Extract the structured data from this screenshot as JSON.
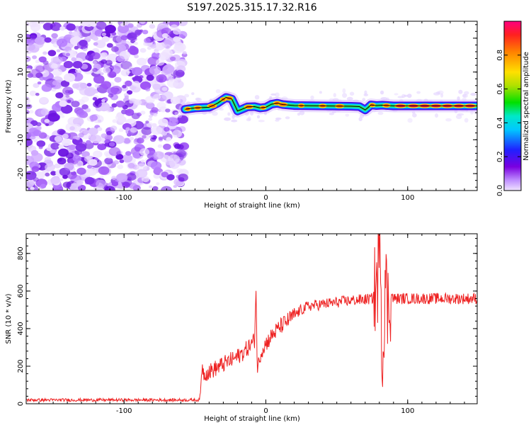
{
  "title": "S197.2025.315.17.32.R16",
  "chart_data": [
    {
      "type": "heatmap",
      "xlabel": "Height of straight line (km)",
      "ylabel": "Frequency (Hz)",
      "xlim": [
        -169,
        149
      ],
      "ylim": [
        -25,
        25
      ],
      "xticks": [
        -100,
        0,
        100
      ],
      "xtick_labels": [
        "-100",
        "0",
        "100"
      ],
      "yticks": [
        -20,
        -10,
        0,
        10,
        20
      ],
      "ytick_labels": [
        "-20",
        "-10",
        "0",
        "10",
        "20"
      ],
      "noise_region_x": [
        -169,
        -57
      ],
      "ridge_line": {
        "x": [
          -57,
          -50,
          -40,
          -34,
          -28,
          -24,
          -20,
          -17,
          -13,
          -8,
          -4,
          0,
          4,
          8,
          12,
          20,
          40,
          60,
          66,
          70,
          72,
          74,
          78,
          82,
          90,
          100,
          120,
          149
        ],
        "y": [
          -1,
          -0.6,
          -0.4,
          0.8,
          2.5,
          2,
          -1.5,
          -1,
          -0.3,
          -0.2,
          -0.6,
          -0.4,
          0.5,
          0.8,
          0.4,
          0.1,
          0,
          -0.1,
          -0.2,
          -1.2,
          -0.5,
          0.3,
          0.1,
          0.2,
          0,
          0,
          0,
          0
        ]
      },
      "colorbar": {
        "label": "Normalized spectral amplitude",
        "range": [
          0,
          1
        ],
        "ticks": [
          "0.0",
          "0.2",
          "0.4",
          "0.6",
          "0.8"
        ]
      }
    },
    {
      "type": "line",
      "xlabel": "Height of straight line (km)",
      "ylabel": "SNR (10 * v/v)",
      "xlim": [
        -169,
        149
      ],
      "ylim": [
        0,
        905
      ],
      "xticks": [
        -100,
        0,
        100
      ],
      "xtick_labels": [
        "-100",
        "0",
        "100"
      ],
      "yticks": [
        0,
        200,
        400,
        600,
        800
      ],
      "ytick_labels": [
        "0",
        "200",
        "400",
        "600",
        "800"
      ],
      "series": [
        {
          "name": "SNR",
          "color": "#ee2222",
          "x": [
            -169,
            -150,
            -120,
            -90,
            -60,
            -47,
            -46,
            -45,
            -44,
            -40,
            -35,
            -30,
            -25,
            -20,
            -15,
            -10,
            -8,
            -7,
            -6,
            -4,
            -2,
            0,
            5,
            10,
            15,
            20,
            25,
            30,
            40,
            50,
            60,
            70,
            75,
            78,
            80,
            81,
            82,
            84,
            86,
            88,
            90,
            95,
            100,
            120,
            140,
            149
          ],
          "values": [
            20,
            20,
            20,
            20,
            20,
            20,
            60,
            220,
            160,
            170,
            190,
            210,
            230,
            250,
            280,
            320,
            340,
            620,
            180,
            260,
            300,
            320,
            370,
            410,
            440,
            470,
            500,
            520,
            530,
            540,
            550,
            555,
            560,
            620,
            760,
            905,
            120,
            680,
            500,
            580,
            560,
            560,
            560,
            560,
            560,
            560
          ]
        }
      ]
    }
  ]
}
